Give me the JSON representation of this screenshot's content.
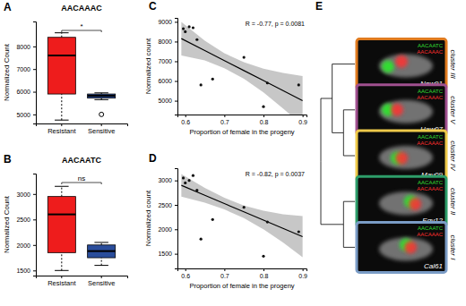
{
  "chart_data": [
    {
      "panel": "A",
      "type": "box",
      "title": "AACAAAC",
      "categories": [
        "Resistant",
        "Sensitive"
      ],
      "colors": [
        "#ee1c1c",
        "#2a4d9b"
      ],
      "boxes": [
        {
          "whisker_low": 4750,
          "q1": 5900,
          "median": 7600,
          "q3": 8400,
          "whisker_high": 8600,
          "outliers": []
        },
        {
          "whisker_low": 5650,
          "q1": 5720,
          "median": 5820,
          "q3": 5900,
          "whisker_high": 5950,
          "outliers": [
            5000
          ]
        }
      ],
      "y_label": "Normalized Count",
      "ylim": [
        4600,
        9100
      ],
      "yticks": [
        5000,
        6000,
        7000,
        8000
      ],
      "annotation": "*"
    },
    {
      "panel": "B",
      "type": "box",
      "title": "AACAATC",
      "categories": [
        "Resistant",
        "Sensitive"
      ],
      "colors": [
        "#ee1c1c",
        "#2a4d9b"
      ],
      "boxes": [
        {
          "whisker_low": 1500,
          "q1": 1850,
          "median": 2600,
          "q3": 2950,
          "whisker_high": 3150,
          "outliers": []
        },
        {
          "whisker_low": 1600,
          "q1": 1750,
          "median": 1880,
          "q3": 2000,
          "whisker_high": 2050,
          "outliers": []
        }
      ],
      "y_label": "Normalized Count",
      "ylim": [
        1400,
        3400
      ],
      "yticks": [
        1500,
        2000,
        2500,
        3000
      ],
      "annotation": "ns"
    },
    {
      "panel": "C",
      "type": "scatter",
      "color": "#111111",
      "x": [
        0.595,
        0.6,
        0.61,
        0.62,
        0.63,
        0.64,
        0.67,
        0.75,
        0.8,
        0.81,
        0.89
      ],
      "values": [
        8650,
        8500,
        8750,
        8700,
        8100,
        5800,
        6100,
        7200,
        4700,
        5900,
        5800
      ],
      "fit": {
        "x": [
          0.59,
          0.65,
          0.7,
          0.75,
          0.8,
          0.85,
          0.9
        ],
        "y": [
          8150,
          7540,
          7030,
          6530,
          6020,
          5510,
          5000
        ],
        "lower": [
          7300,
          7040,
          6650,
          6110,
          5420,
          4610,
          3750
        ],
        "upper": [
          9000,
          8040,
          7410,
          6950,
          6620,
          6410,
          6250
        ]
      },
      "annotation": "R = -0.77, p = 0.0081",
      "x_label": "Proportion of female in the progeny",
      "y_label": "Normalized count",
      "xlim": [
        0.58,
        0.91
      ],
      "xticks": [
        0.6,
        0.7,
        0.8,
        0.9
      ],
      "ylim": [
        4300,
        9200
      ],
      "yticks": [
        5000,
        6000,
        7000,
        8000,
        9000
      ]
    },
    {
      "panel": "D",
      "type": "scatter",
      "color": "#111111",
      "x": [
        0.595,
        0.6,
        0.61,
        0.62,
        0.63,
        0.64,
        0.67,
        0.75,
        0.8,
        0.81,
        0.89
      ],
      "values": [
        3050,
        2950,
        3000,
        3100,
        2800,
        1800,
        2200,
        2450,
        1450,
        2150,
        1950
      ],
      "fit": {
        "x": [
          0.59,
          0.65,
          0.7,
          0.75,
          0.8,
          0.85,
          0.9
        ],
        "y": [
          2900,
          2697,
          2527,
          2358,
          2189,
          2019,
          1850
        ],
        "lower": [
          2670,
          2547,
          2407,
          2228,
          1999,
          1729,
          1430
        ],
        "upper": [
          3130,
          2847,
          2647,
          2488,
          2379,
          2309,
          2270
        ]
      },
      "annotation": "R = -0.82, p = 0.0037",
      "x_label": "Proportion of female in the progeny",
      "y_label": "Normalized count",
      "xlim": [
        0.58,
        0.91
      ],
      "xticks": [
        0.6,
        0.7,
        0.8,
        0.9
      ],
      "ylim": [
        1200,
        3250
      ],
      "yticks": [
        1500,
        2000,
        2500,
        3000
      ]
    }
  ],
  "tree": {
    "panel": "E",
    "probe_labels": [
      "AACAATC",
      "AACAAAC"
    ],
    "probe_colors": [
      "#33dd33",
      "#ff3030"
    ],
    "leaves": [
      {
        "cluster": "cluster III",
        "strain": "New91",
        "color": "#e07b1f"
      },
      {
        "cluster": "cluster V",
        "strain": "Haw07",
        "color": "#a0508f"
      },
      {
        "cluster": "cluster IV",
        "strain": "May09",
        "color": "#eec94a"
      },
      {
        "cluster": "cluster II",
        "strain": "Egy12",
        "color": "#2e9e6a"
      },
      {
        "cluster": "cluster I",
        "strain": "Cal61",
        "color": "#7a9cc6"
      }
    ],
    "structure": {
      "children": [
        {
          "children": [
            {
              "leaf": 0
            },
            {
              "children": [
                {
                  "leaf": 1
                },
                {
                  "leaf": 2
                }
              ]
            }
          ]
        },
        {
          "children": [
            {
              "leaf": 3
            },
            {
              "leaf": 4
            }
          ]
        }
      ]
    }
  }
}
